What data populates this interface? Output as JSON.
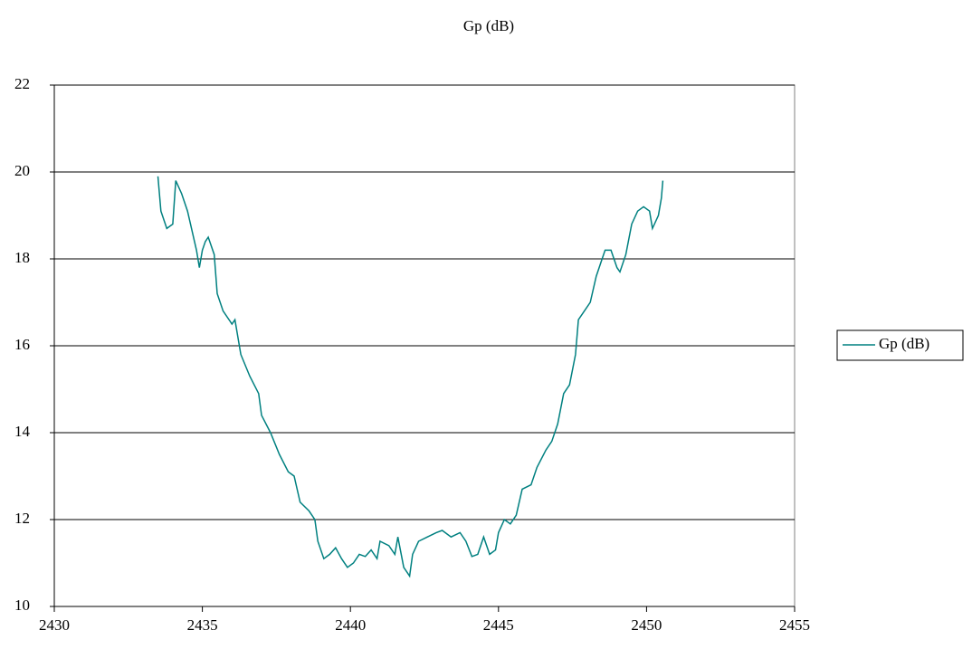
{
  "chart_data": {
    "type": "line",
    "title": "Gp (dB)",
    "x": [
      2433.5,
      2433.6,
      2433.8,
      2434.0,
      2434.1,
      2434.3,
      2434.5,
      2434.6,
      2434.8,
      2434.9,
      2435.0,
      2435.1,
      2435.2,
      2435.4,
      2435.5,
      2435.7,
      2436.0,
      2436.1,
      2436.3,
      2436.6,
      2436.9,
      2437.0,
      2437.3,
      2437.6,
      2437.9,
      2438.1,
      2438.3,
      2438.6,
      2438.8,
      2438.9,
      2439.1,
      2439.3,
      2439.5,
      2439.7,
      2439.9,
      2440.1,
      2440.3,
      2440.5,
      2440.7,
      2440.9,
      2441.0,
      2441.3,
      2441.5,
      2441.6,
      2441.8,
      2442.0,
      2442.1,
      2442.3,
      2442.6,
      2442.9,
      2443.1,
      2443.4,
      2443.7,
      2443.9,
      2444.1,
      2444.3,
      2444.5,
      2444.7,
      2444.9,
      2445.0,
      2445.2,
      2445.4,
      2445.6,
      2445.8,
      2446.1,
      2446.3,
      2446.6,
      2446.8,
      2447.0,
      2447.2,
      2447.4,
      2447.6,
      2447.7,
      2447.9,
      2448.1,
      2448.3,
      2448.5,
      2448.6,
      2448.8,
      2449.0,
      2449.1,
      2449.3,
      2449.5,
      2449.7,
      2449.9,
      2450.1,
      2450.2,
      2450.4,
      2450.5,
      2450.55
    ],
    "series": [
      {
        "name": "Gp (dB)",
        "color": "#008080",
        "values": [
          19.9,
          19.1,
          18.7,
          18.8,
          19.8,
          19.5,
          19.1,
          18.8,
          18.2,
          17.8,
          18.2,
          18.4,
          18.5,
          18.1,
          17.2,
          16.8,
          16.5,
          16.6,
          15.8,
          15.3,
          14.9,
          14.4,
          14.0,
          13.5,
          13.1,
          13.0,
          12.4,
          12.2,
          12.0,
          11.5,
          11.1,
          11.2,
          11.35,
          11.1,
          10.9,
          11.0,
          11.2,
          11.15,
          11.3,
          11.1,
          11.5,
          11.4,
          11.2,
          11.6,
          10.9,
          10.7,
          11.2,
          11.5,
          11.6,
          11.7,
          11.75,
          11.6,
          11.7,
          11.5,
          11.15,
          11.2,
          11.6,
          11.2,
          11.3,
          11.7,
          12.0,
          11.9,
          12.1,
          12.7,
          12.8,
          13.2,
          13.6,
          13.8,
          14.2,
          14.9,
          15.1,
          15.8,
          16.6,
          16.8,
          17.0,
          17.6,
          18.0,
          18.2,
          18.2,
          17.8,
          17.7,
          18.1,
          18.8,
          19.1,
          19.2,
          19.1,
          18.7,
          19.0,
          19.4,
          19.8
        ]
      }
    ],
    "xlim": [
      2430,
      2455
    ],
    "xticks": [
      2430,
      2435,
      2440,
      2445,
      2450,
      2455
    ],
    "ylim": [
      10,
      22
    ],
    "yticks": [
      10,
      12,
      14,
      16,
      18,
      20,
      22
    ],
    "grid": true,
    "legend": "right"
  }
}
